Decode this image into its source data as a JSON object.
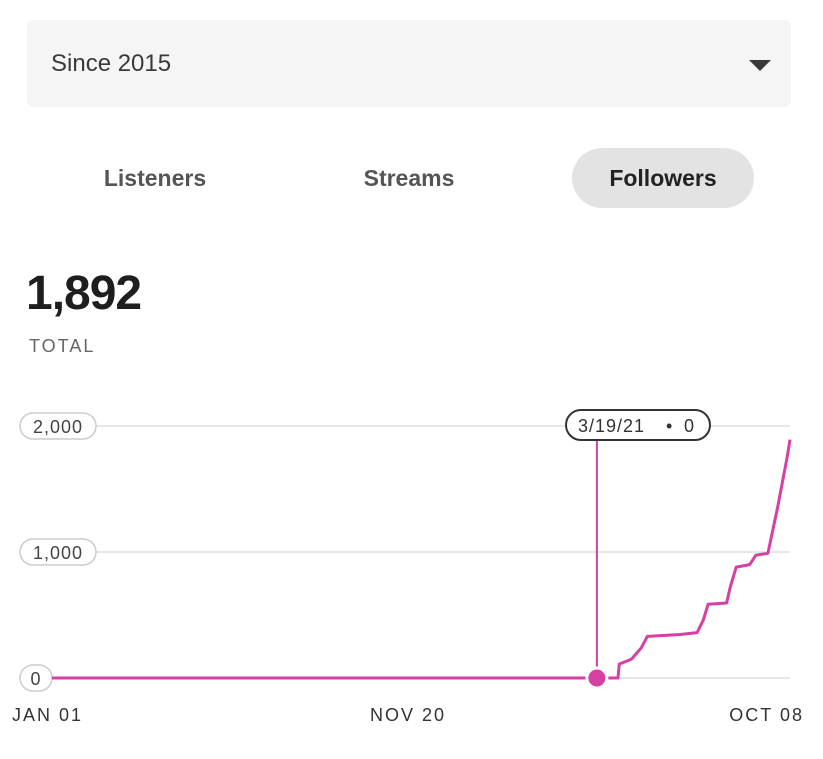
{
  "filter": {
    "selected": "Since 2015",
    "icon": "chevron-down-icon"
  },
  "tabs": [
    {
      "label": "Listeners",
      "active": false
    },
    {
      "label": "Streams",
      "active": false
    },
    {
      "label": "Followers",
      "active": true
    }
  ],
  "summary": {
    "total": "1,892",
    "total_label": "TOTAL"
  },
  "tooltip": {
    "date": "3/19/21",
    "separator": "•",
    "value": "0"
  },
  "colors": {
    "accent": "#d63fa4",
    "grid": "#dddddd",
    "tab_active_bg": "#e3e3e3",
    "dropdown_bg": "#f5f5f5"
  },
  "chart_data": {
    "type": "line",
    "title": "",
    "xlabel": "",
    "ylabel": "",
    "ylim": [
      0,
      2000
    ],
    "yticks": [
      0,
      1000,
      2000
    ],
    "ytick_labels": [
      "0",
      "1,000",
      "2,000"
    ],
    "xtick_labels": [
      "JAN 01",
      "NOV 20",
      "OCT 08"
    ],
    "grid": true,
    "series": [
      {
        "color": "#d63fa4",
        "points": [
          {
            "x": "2015-01-01",
            "y": 0
          },
          {
            "x": "2021-06-15",
            "y": 0
          },
          {
            "x": "2021-06-20",
            "y": 110
          },
          {
            "x": "2021-08-10",
            "y": 150
          },
          {
            "x": "2021-09-20",
            "y": 240
          },
          {
            "x": "2021-10-15",
            "y": 330
          },
          {
            "x": "2022-03-01",
            "y": 345
          },
          {
            "x": "2022-05-10",
            "y": 360
          },
          {
            "x": "2022-06-05",
            "y": 460
          },
          {
            "x": "2022-06-25",
            "y": 585
          },
          {
            "x": "2022-09-10",
            "y": 595
          },
          {
            "x": "2022-09-25",
            "y": 720
          },
          {
            "x": "2022-10-20",
            "y": 880
          },
          {
            "x": "2022-12-15",
            "y": 900
          },
          {
            "x": "2023-01-10",
            "y": 975
          },
          {
            "x": "2023-03-01",
            "y": 990
          },
          {
            "x": "2023-04-10",
            "y": 1350
          },
          {
            "x": "2023-05-20",
            "y": 1750
          },
          {
            "x": "2023-06-01",
            "y": 1892
          }
        ]
      }
    ],
    "highlight": {
      "x": "2021-03-19",
      "y": 0
    }
  }
}
